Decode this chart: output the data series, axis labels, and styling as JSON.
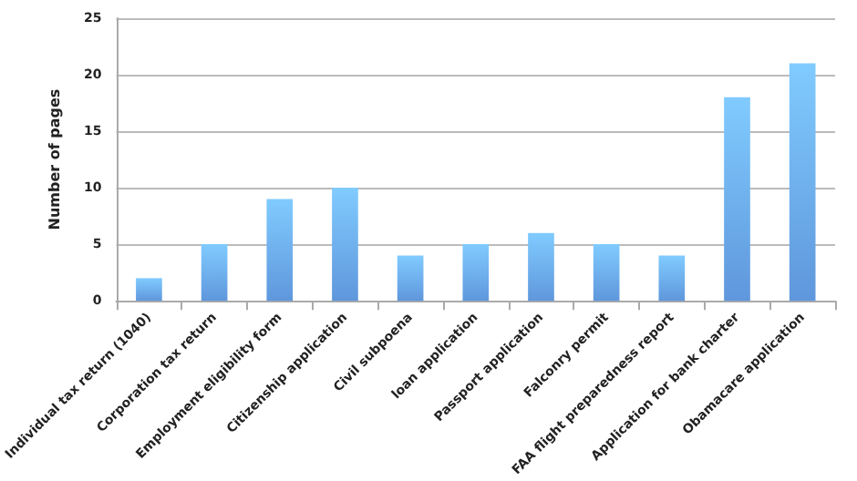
{
  "chart_data": {
    "type": "bar",
    "ylabel": "Number of pages",
    "categories": [
      "Individual tax return (1040)",
      "Corporation tax return",
      "Employment eligibility form",
      "Citizenship application",
      "Civil subpoena",
      "loan application",
      "Passport application",
      "Falconry permit",
      "FAA flight preparedness report",
      "Application for bank charter",
      "Obamacare application"
    ],
    "values": [
      2,
      5,
      9,
      10,
      4,
      5,
      6,
      5,
      4,
      18,
      21
    ],
    "color": "#5f97dc",
    "ylim": [
      0,
      25
    ],
    "yticks": [
      0,
      5,
      10,
      15,
      20,
      25
    ],
    "grid": "y"
  }
}
